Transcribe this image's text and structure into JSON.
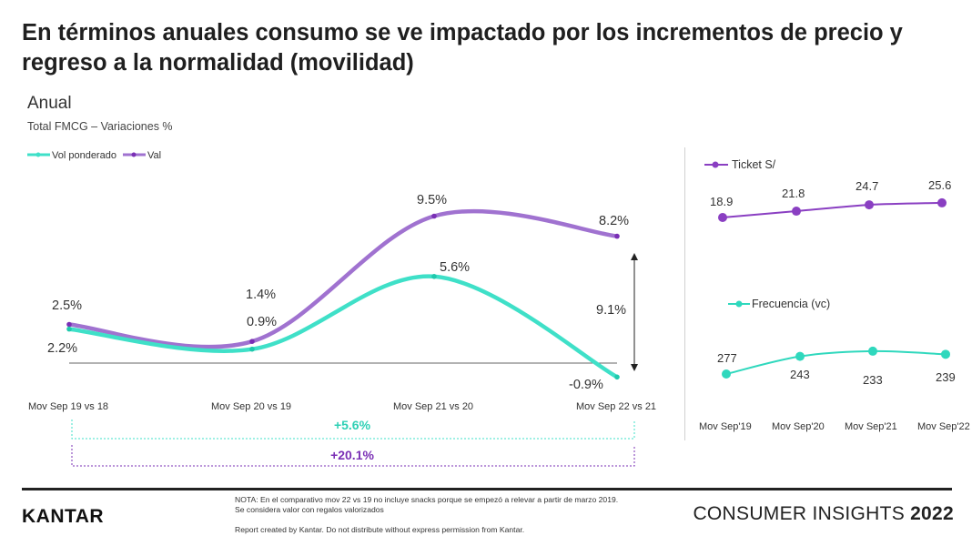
{
  "title": "En términos anuales consumo se ve impactado por los incrementos de precio y regreso a la normalidad (movilidad)",
  "subtitle": "Anual",
  "subtitle_sub": "Total FMCG – Variaciones %",
  "colors": {
    "vol": "#3fe0c8",
    "val": "#a072d0",
    "val_dark": "#7a2fb5",
    "ticket": "#8a3fc2",
    "frecuencia": "#2fd8bd"
  },
  "chart_data": [
    {
      "type": "line",
      "categories": [
        "Mov Sep 19 vs 18",
        "Mov Sep 20 vs 19",
        "Mov Sep 21 vs 20",
        "Mov Sep 22 vs 21"
      ],
      "series": [
        {
          "name": "Vol ponderado",
          "values": [
            2.2,
            0.9,
            5.6,
            -0.9
          ],
          "labels": [
            "2.2%",
            "0.9%",
            "5.6%",
            "-0.9%"
          ]
        },
        {
          "name": "Val",
          "values": [
            2.5,
            1.4,
            9.5,
            8.2
          ],
          "labels": [
            "2.5%",
            "1.4%",
            "9.5%",
            "8.2%"
          ]
        }
      ],
      "annotations": {
        "gap": "9.1%",
        "vol_total": "+5.6%",
        "val_total": "+20.1%"
      },
      "ylim": [
        -1.5,
        11
      ],
      "legend": "top-left"
    },
    {
      "type": "line",
      "categories": [
        "Mov Sep'19",
        "Mov Sep'20",
        "Mov Sep'21",
        "Mov Sep'22"
      ],
      "series": [
        {
          "name": "Ticket S/",
          "values": [
            18.9,
            21.8,
            24.7,
            25.6
          ],
          "labels": [
            "18.9",
            "21.8",
            "24.7",
            "25.6"
          ]
        },
        {
          "name": "Frecuencia (vc)",
          "values": [
            277,
            243,
            233,
            239
          ],
          "labels": [
            "277",
            "243",
            "233",
            "239"
          ]
        }
      ]
    }
  ],
  "footer": {
    "logo": "KANTAR",
    "note_line1": "NOTA: En el comparativo mov 22 vs 19 no incluye snacks porque se empezó a relevar a partir de marzo 2019.",
    "note_line2": "Se considera valor con regalos valorizados",
    "report": "Report created by Kantar. Do not distribute without express permission from Kantar.",
    "brand": "CONSUMER INSIGHTS",
    "year": "2022"
  }
}
